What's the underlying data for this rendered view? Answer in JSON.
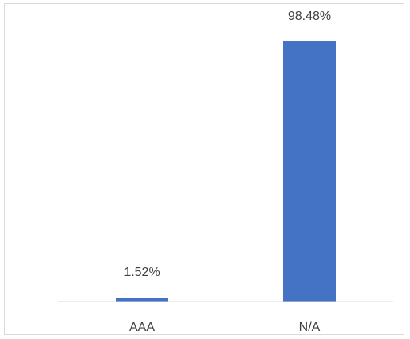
{
  "chart_data": {
    "type": "bar",
    "categories": [
      "AAA",
      "N/A"
    ],
    "values": [
      1.52,
      98.48
    ],
    "data_labels": [
      "1.52%",
      "98.48%"
    ],
    "title": "",
    "xlabel": "",
    "ylabel": "",
    "ylim": [
      0,
      100
    ],
    "grid": false,
    "legend": "none",
    "bar_color": "#4472c4",
    "axis_color": "#d9d9d9",
    "label_color": "#404040"
  }
}
